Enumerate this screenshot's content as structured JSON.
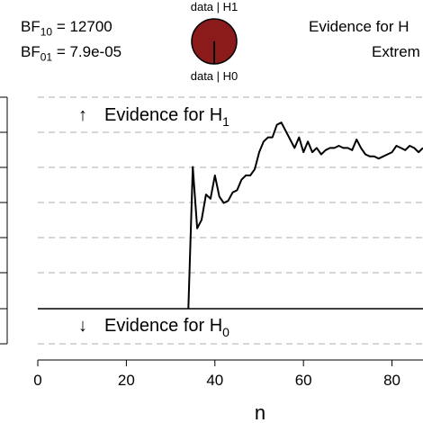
{
  "header": {
    "bf10_prefix": "BF",
    "bf10_sub": "10",
    "bf10_value": " = 12700",
    "bf01_prefix": "BF",
    "bf01_sub": "01",
    "bf01_value": " = 7.9e-05",
    "pie_top_label": "data | H1",
    "pie_bottom_label": "data | H0",
    "evidence_line1": "Evidence for H",
    "evidence_line2": "Extrem"
  },
  "colors": {
    "pie_fill": "#8b1a1a",
    "line": "#000000",
    "grid": "#c8c8c8"
  },
  "chart_data": {
    "type": "line",
    "xlabel": "n",
    "xlim": [
      0,
      87
    ],
    "ylim": [
      0,
      1
    ],
    "x_ticks": [
      0,
      20,
      40,
      60,
      80
    ],
    "region_top_text": "Evidence for H",
    "region_top_sub": "1",
    "region_bottom_text": "Evidence for H",
    "region_bottom_sub": "0",
    "series": [
      {
        "x": [
          34,
          35,
          36,
          37,
          38,
          39,
          40,
          41,
          42,
          43,
          44,
          45,
          46,
          47,
          48,
          49,
          50,
          51,
          52,
          53,
          54,
          55,
          56,
          57,
          58,
          59,
          60,
          61,
          62,
          63,
          64,
          65,
          66,
          67,
          68,
          69,
          70,
          71,
          72,
          73,
          74,
          75,
          76,
          77,
          78,
          79,
          80,
          81,
          82,
          83,
          84,
          85,
          86,
          87
        ],
        "y": [
          0.0,
          0.67,
          0.38,
          0.42,
          0.54,
          0.52,
          0.63,
          0.53,
          0.5,
          0.51,
          0.55,
          0.56,
          0.61,
          0.63,
          0.63,
          0.66,
          0.74,
          0.79,
          0.81,
          0.81,
          0.87,
          0.88,
          0.84,
          0.8,
          0.76,
          0.81,
          0.74,
          0.79,
          0.74,
          0.76,
          0.73,
          0.75,
          0.76,
          0.76,
          0.77,
          0.76,
          0.76,
          0.75,
          0.8,
          0.76,
          0.73,
          0.72,
          0.72,
          0.71,
          0.72,
          0.73,
          0.74,
          0.77,
          0.76,
          0.75,
          0.77,
          0.76,
          0.74,
          0.76
        ]
      }
    ]
  }
}
